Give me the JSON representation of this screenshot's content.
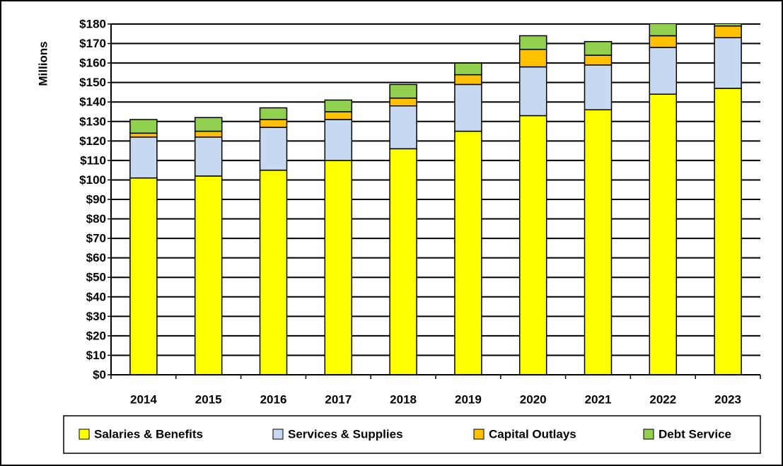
{
  "chart_data": {
    "type": "stacked_bar",
    "y_label": "Millions",
    "categories": [
      "2014",
      "2015",
      "2016",
      "2017",
      "2018",
      "2019",
      "2020",
      "2021",
      "2022",
      "2023"
    ],
    "series": [
      {
        "name": "Salaries & Benefits",
        "color": "#ffff00",
        "values": [
          101,
          102,
          105,
          110,
          116,
          125,
          133,
          136,
          144,
          147
        ]
      },
      {
        "name": "Services & Supplies",
        "color": "#c6d9f1",
        "values": [
          21,
          20,
          22,
          21,
          22,
          24,
          25,
          23,
          24,
          26
        ]
      },
      {
        "name": "Capital Outlays",
        "color": "#ffc000",
        "values": [
          2,
          3,
          4,
          4,
          4,
          5,
          9,
          5,
          6,
          6
        ]
      },
      {
        "name": "Debt Service",
        "color": "#92d050",
        "values": [
          7,
          7,
          6,
          6,
          7,
          6,
          7,
          7,
          8,
          7
        ]
      }
    ],
    "ylim": [
      0,
      180
    ],
    "yticks": [
      {
        "value": 0,
        "label": "$0"
      },
      {
        "value": 10,
        "label": "$10"
      },
      {
        "value": 20,
        "label": "$20"
      },
      {
        "value": 30,
        "label": "$30"
      },
      {
        "value": 40,
        "label": "$40"
      },
      {
        "value": 50,
        "label": "$50"
      },
      {
        "value": 60,
        "label": "$60"
      },
      {
        "value": 70,
        "label": "$70"
      },
      {
        "value": 80,
        "label": "$80"
      },
      {
        "value": 90,
        "label": "$90"
      },
      {
        "value": 100,
        "label": "$100"
      },
      {
        "value": 110,
        "label": "$110"
      },
      {
        "value": 120,
        "label": "$120"
      },
      {
        "value": 130,
        "label": "$130"
      },
      {
        "value": 140,
        "label": "$140"
      },
      {
        "value": 150,
        "label": "$150"
      },
      {
        "value": 160,
        "label": "$160"
      },
      {
        "value": 170,
        "label": "$170"
      },
      {
        "value": 180,
        "label": "$180"
      }
    ],
    "grid": true,
    "legend": "bottom"
  }
}
